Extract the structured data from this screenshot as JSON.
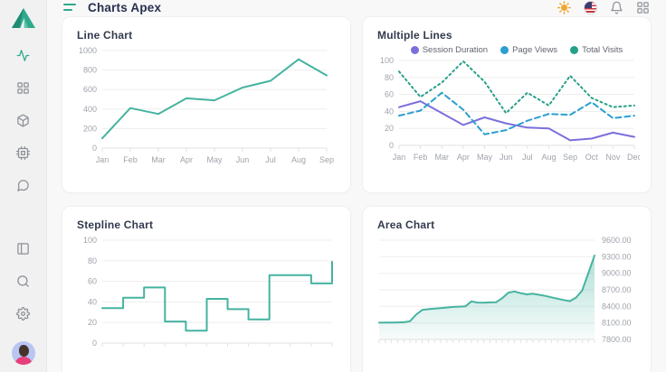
{
  "app": {
    "title": "Charts Apex"
  },
  "header": {
    "icons": [
      "theme-sun",
      "language-flag-us",
      "notifications-bell",
      "apps-grid"
    ]
  },
  "sidebar": {
    "icons": [
      "activity",
      "dashboard",
      "package",
      "cpu",
      "chat",
      "layout",
      "search",
      "settings"
    ],
    "active_icon": "activity",
    "avatar": "user-avatar"
  },
  "colors": {
    "accent": "#2fa98c",
    "teal_line": "#45b3a0",
    "purple": "#7b6fdd",
    "blue": "#2b9fd1",
    "green": "#27a08a",
    "sun": "#f2a52e"
  },
  "chart_data": [
    {
      "type": "line",
      "title": "Line Chart",
      "categories": [
        "Jan",
        "Feb",
        "Mar",
        "Apr",
        "May",
        "Jun",
        "Jul",
        "Aug",
        "Sep"
      ],
      "values": [
        100,
        410,
        350,
        510,
        490,
        620,
        690,
        910,
        745
      ],
      "color": "#45b3a0",
      "ylim": [
        0,
        1000
      ],
      "yticks": [
        1000,
        800,
        600,
        400,
        200,
        0
      ],
      "grid": true,
      "legend_position": "none"
    },
    {
      "type": "line",
      "title": "Multiple Lines",
      "categories": [
        "Jan",
        "Feb",
        "Mar",
        "Apr",
        "May",
        "Jun",
        "Jul",
        "Aug",
        "Sep",
        "Oct",
        "Nov",
        "Dec"
      ],
      "series": [
        {
          "name": "Session Duration",
          "color": "#7b6fdd",
          "style": "solid",
          "values": [
            45,
            52,
            38,
            24,
            33,
            26,
            21,
            20,
            6,
            8,
            15,
            10
          ]
        },
        {
          "name": "Page Views",
          "color": "#2b9fd1",
          "style": "dashed",
          "values": [
            35,
            41,
            62,
            42,
            13,
            18,
            29,
            37,
            36,
            51,
            32,
            35
          ]
        },
        {
          "name": "Total Visits",
          "color": "#27a08a",
          "style": "dotted",
          "values": [
            87,
            57,
            74,
            99,
            75,
            38,
            62,
            47,
            82,
            56,
            45,
            47
          ]
        }
      ],
      "ylim": [
        0,
        100
      ],
      "yticks": [
        100,
        80,
        60,
        40,
        20,
        0
      ],
      "grid": true,
      "legend_position": "top"
    },
    {
      "type": "stepline",
      "title": "Stepline Chart",
      "values": [
        34,
        44,
        54,
        21,
        12,
        43,
        33,
        23,
        66,
        66,
        58,
        79
      ],
      "color": "#45b3a0",
      "ylim": [
        0,
        100
      ],
      "yticks": [
        100,
        80,
        60,
        40,
        20,
        0
      ],
      "grid": true,
      "x_labels_visible": false,
      "legend_position": "none"
    },
    {
      "type": "area",
      "title": "Area Chart",
      "values": [
        8105,
        8108,
        8106,
        8110,
        8112,
        8130,
        8250,
        8335,
        8350,
        8360,
        8370,
        8380,
        8390,
        8395,
        8400,
        8490,
        8470,
        8468,
        8472,
        8475,
        8550,
        8650,
        8670,
        8640,
        8618,
        8630,
        8610,
        8590,
        8565,
        8540,
        8515,
        8495,
        8560,
        8690,
        9005,
        9320
      ],
      "color": "#45b3a0",
      "ylim": [
        7800,
        9600
      ],
      "yticks": [
        "9600.00",
        "9300.00",
        "9000.00",
        "8700.00",
        "8400.00",
        "8100.00",
        "7800.00"
      ],
      "yaxis_position": "right",
      "grid": true,
      "x_labels_visible": false,
      "legend_position": "none"
    }
  ]
}
